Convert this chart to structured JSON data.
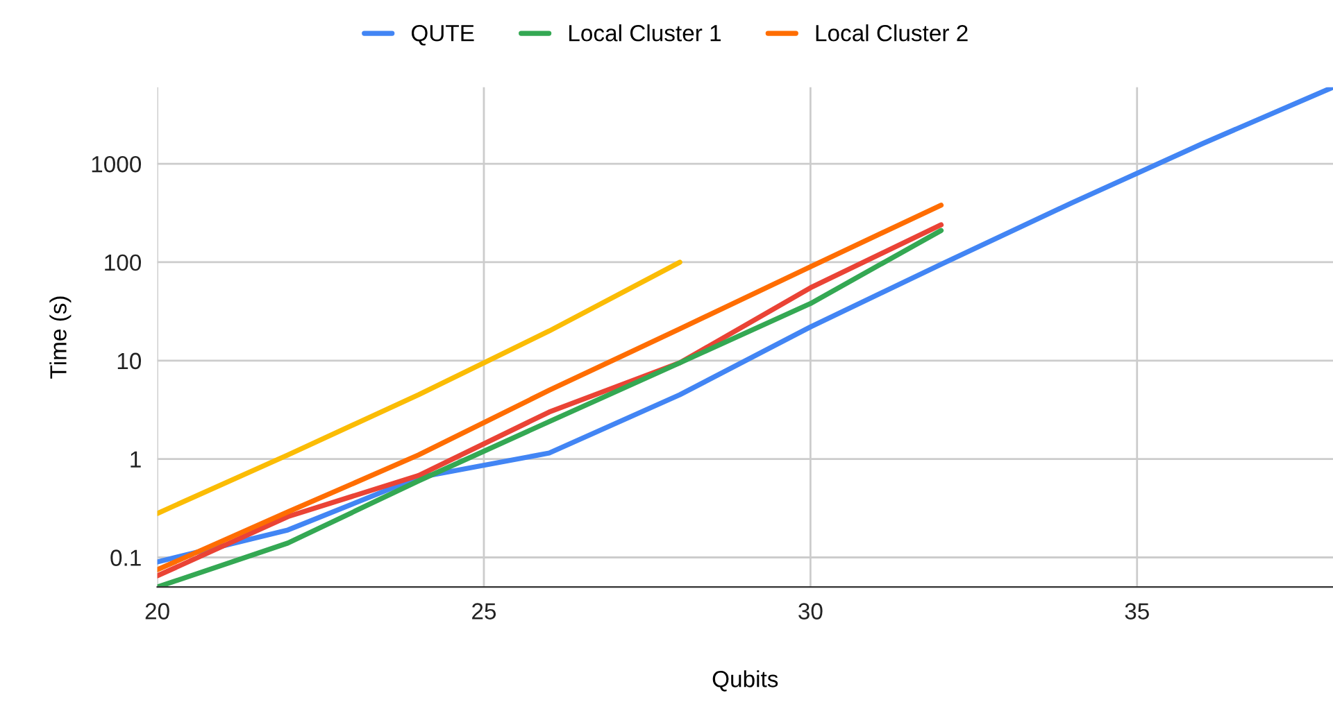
{
  "chart_data": {
    "type": "line",
    "xlabel": "Qubits",
    "ylabel": "Time (s)",
    "log": "y",
    "xlim": [
      20,
      38
    ],
    "xticks": [
      20,
      25,
      30,
      35
    ],
    "ylim": [
      0.05,
      6000
    ],
    "yticks": [
      0.1,
      1,
      10,
      100,
      1000
    ],
    "grid": true,
    "legend": "top",
    "marker": "none",
    "line_style": "solid",
    "series": [
      {
        "name": "QUTE",
        "color": "#4285f4",
        "x": [
          20,
          22,
          24,
          26,
          28,
          30,
          32,
          34,
          36,
          38
        ],
        "values": [
          0.09,
          0.19,
          0.65,
          1.15,
          4.5,
          22,
          95,
          400,
          1600,
          6000
        ]
      },
      {
        "color": "#ea4335",
        "x": [
          20,
          22,
          24,
          26,
          28,
          30,
          32
        ],
        "values": [
          0.065,
          0.26,
          0.68,
          3,
          9.5,
          55,
          240
        ]
      },
      {
        "color": "#fbbc04",
        "x": [
          20,
          22,
          24,
          26,
          28
        ],
        "values": [
          0.28,
          1.1,
          4.5,
          20,
          100
        ]
      },
      {
        "name": "Local Cluster 1",
        "color": "#34a853",
        "x": [
          20,
          22,
          24,
          26,
          28,
          30,
          32
        ],
        "values": [
          0.05,
          0.14,
          0.6,
          2.4,
          9.5,
          38,
          210
        ]
      },
      {
        "name": "Local Cluster 2",
        "color": "#ff6d01",
        "x": [
          20,
          22,
          24,
          26,
          28,
          30,
          32
        ],
        "values": [
          0.075,
          0.29,
          1.1,
          5,
          21,
          90,
          380
        ]
      }
    ]
  }
}
